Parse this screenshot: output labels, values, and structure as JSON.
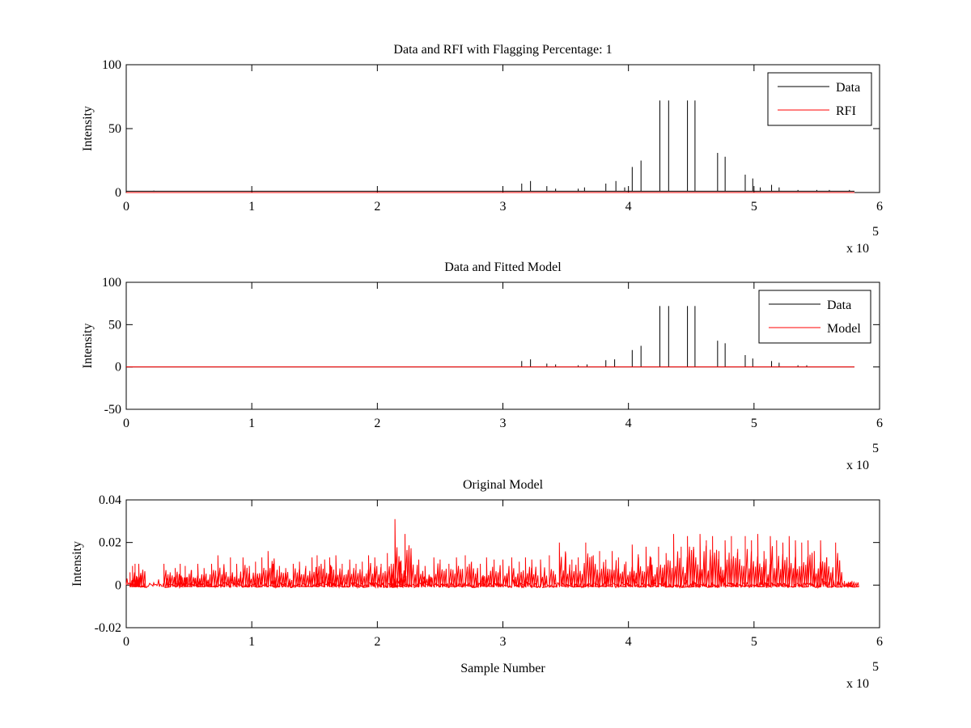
{
  "figure": {
    "background": "#ffffff"
  },
  "colors": {
    "data": "#000000",
    "rfi": "#ff0000",
    "model": "#ff0000",
    "axes": "#000000"
  },
  "chart_data": [
    {
      "type": "line",
      "title": "Data and RFI with Flagging Percentage: 1",
      "xlabel": "",
      "ylabel": "Intensity",
      "xlim": [
        0,
        6
      ],
      "ylim": [
        0,
        100
      ],
      "x_ticks": [
        "0",
        "1",
        "2",
        "3",
        "4",
        "5",
        "6"
      ],
      "y_ticks": [
        "0",
        "50",
        "100"
      ],
      "x_exponent": {
        "base": "x 10",
        "power": "5"
      },
      "legend": {
        "position": "top-right",
        "entries": [
          "Data",
          "RFI"
        ]
      },
      "series": [
        {
          "name": "Data",
          "color": "#000000",
          "baseline": 1,
          "end_x": 5.8,
          "spikes": [
            [
              0.22,
              1.5
            ],
            [
              3.15,
              7
            ],
            [
              3.22,
              9
            ],
            [
              3.35,
              5
            ],
            [
              3.42,
              3
            ],
            [
              3.6,
              3
            ],
            [
              3.65,
              4
            ],
            [
              3.82,
              7
            ],
            [
              3.9,
              9
            ],
            [
              3.97,
              4
            ],
            [
              4.03,
              20
            ],
            [
              4.1,
              25
            ],
            [
              4.25,
              72
            ],
            [
              4.32,
              72
            ],
            [
              4.47,
              72
            ],
            [
              4.53,
              72
            ],
            [
              4.71,
              31
            ],
            [
              4.77,
              28
            ],
            [
              4.93,
              14
            ],
            [
              4.99,
              11
            ],
            [
              5.05,
              4
            ],
            [
              5.14,
              6
            ],
            [
              5.2,
              4
            ],
            [
              5.35,
              2
            ],
            [
              5.5,
              2
            ],
            [
              5.6,
              2
            ],
            [
              5.76,
              2
            ]
          ]
        },
        {
          "name": "RFI",
          "color": "#ff0000",
          "baseline": 0,
          "end_x": 5.8,
          "spikes": []
        }
      ]
    },
    {
      "type": "line",
      "title": "Data and Fitted Model",
      "xlabel": "",
      "ylabel": "Intensity",
      "xlim": [
        0,
        6
      ],
      "ylim": [
        -50,
        100
      ],
      "x_ticks": [
        "0",
        "1",
        "2",
        "3",
        "4",
        "5",
        "6"
      ],
      "y_ticks": [
        "-50",
        "0",
        "50",
        "100"
      ],
      "x_exponent": {
        "base": "x 10",
        "power": "5"
      },
      "legend": {
        "position": "top-right",
        "entries": [
          "Data",
          "Model"
        ]
      },
      "series": [
        {
          "name": "Data",
          "color": "#000000",
          "baseline": 0,
          "end_x": 5.8,
          "spikes": [
            [
              3.15,
              7
            ],
            [
              3.22,
              9
            ],
            [
              3.35,
              4
            ],
            [
              3.42,
              3
            ],
            [
              3.6,
              2
            ],
            [
              3.67,
              3
            ],
            [
              3.82,
              8
            ],
            [
              3.89,
              9
            ],
            [
              4.03,
              20
            ],
            [
              4.1,
              25
            ],
            [
              4.25,
              72
            ],
            [
              4.32,
              72
            ],
            [
              4.47,
              72
            ],
            [
              4.53,
              72
            ],
            [
              4.71,
              31
            ],
            [
              4.77,
              28
            ],
            [
              4.93,
              14
            ],
            [
              4.99,
              10
            ],
            [
              5.14,
              7
            ],
            [
              5.2,
              5
            ],
            [
              5.35,
              2
            ],
            [
              5.42,
              2
            ]
          ]
        },
        {
          "name": "Model",
          "color": "#ff0000",
          "baseline": 0,
          "end_x": 5.8,
          "spikes": []
        }
      ]
    },
    {
      "type": "line",
      "title": "Original Model",
      "xlabel": "Sample Number",
      "ylabel": "Intensity",
      "xlim": [
        0,
        6
      ],
      "ylim": [
        -0.02,
        0.04
      ],
      "x_ticks": [
        "0",
        "1",
        "2",
        "3",
        "4",
        "5",
        "6"
      ],
      "y_ticks": [
        "-0.02",
        "0",
        "0.02",
        "0.04"
      ],
      "x_exponent": {
        "base": "x 10",
        "power": "5"
      },
      "legend": null,
      "series": [
        {
          "name": "",
          "color": "#ff0000",
          "baseline": 0,
          "end_x": 5.8,
          "noise": 0.0012,
          "spikes": [
            [
              0.03,
              0.006
            ],
            [
              0.05,
              0.009
            ],
            [
              0.07,
              0.01
            ],
            [
              0.1,
              0.01
            ],
            [
              0.3,
              0.01
            ],
            [
              0.35,
              0.006
            ],
            [
              0.39,
              0.008
            ],
            [
              0.43,
              0.01
            ],
            [
              0.47,
              0.009
            ],
            [
              0.52,
              0.007
            ],
            [
              0.57,
              0.01
            ],
            [
              0.62,
              0.008
            ],
            [
              0.68,
              0.01
            ],
            [
              0.73,
              0.014
            ],
            [
              0.78,
              0.008
            ],
            [
              0.83,
              0.013
            ],
            [
              0.88,
              0.01
            ],
            [
              0.93,
              0.013
            ],
            [
              0.98,
              0.009
            ],
            [
              1.03,
              0.011
            ],
            [
              1.08,
              0.013
            ],
            [
              1.13,
              0.016
            ],
            [
              1.17,
              0.01
            ],
            [
              1.22,
              0.009
            ],
            [
              1.27,
              0.008
            ],
            [
              1.33,
              0.01
            ],
            [
              1.38,
              0.011
            ],
            [
              1.43,
              0.009
            ],
            [
              1.48,
              0.013
            ],
            [
              1.52,
              0.014
            ],
            [
              1.58,
              0.012
            ],
            [
              1.62,
              0.013
            ],
            [
              1.67,
              0.014
            ],
            [
              1.72,
              0.01
            ],
            [
              1.78,
              0.012
            ],
            [
              1.83,
              0.01
            ],
            [
              1.88,
              0.011
            ],
            [
              1.93,
              0.014
            ],
            [
              1.98,
              0.013
            ],
            [
              2.03,
              0.01
            ],
            [
              2.08,
              0.015
            ],
            [
              2.11,
              0.01
            ],
            [
              2.14,
              0.031
            ],
            [
              2.18,
              0.011
            ],
            [
              2.22,
              0.024
            ],
            [
              2.27,
              0.014
            ],
            [
              2.33,
              0.012
            ],
            [
              2.38,
              0.009
            ],
            [
              2.45,
              0.013
            ],
            [
              2.5,
              0.012
            ],
            [
              2.57,
              0.01
            ],
            [
              2.63,
              0.013
            ],
            [
              2.7,
              0.014
            ],
            [
              2.75,
              0.011
            ],
            [
              2.82,
              0.01
            ],
            [
              2.87,
              0.013
            ],
            [
              2.93,
              0.012
            ],
            [
              3.0,
              0.012
            ],
            [
              3.07,
              0.013
            ],
            [
              3.13,
              0.011
            ],
            [
              3.18,
              0.013
            ],
            [
              3.23,
              0.012
            ],
            [
              3.3,
              0.012
            ],
            [
              3.37,
              0.014
            ],
            [
              3.45,
              0.02
            ],
            [
              3.5,
              0.015
            ],
            [
              3.55,
              0.012
            ],
            [
              3.6,
              0.013
            ],
            [
              3.66,
              0.02
            ],
            [
              3.72,
              0.014
            ],
            [
              3.77,
              0.016
            ],
            [
              3.82,
              0.012
            ],
            [
              3.87,
              0.016
            ],
            [
              3.92,
              0.013
            ],
            [
              3.98,
              0.011
            ],
            [
              4.03,
              0.019
            ],
            [
              4.08,
              0.013
            ],
            [
              4.14,
              0.018
            ],
            [
              4.18,
              0.013
            ],
            [
              4.24,
              0.018
            ],
            [
              4.3,
              0.015
            ],
            [
              4.36,
              0.024
            ],
            [
              4.42,
              0.018
            ],
            [
              4.47,
              0.023
            ],
            [
              4.52,
              0.017
            ],
            [
              4.57,
              0.024
            ],
            [
              4.62,
              0.021
            ],
            [
              4.67,
              0.023
            ],
            [
              4.72,
              0.016
            ],
            [
              4.77,
              0.021
            ],
            [
              4.82,
              0.023
            ],
            [
              4.87,
              0.017
            ],
            [
              4.93,
              0.023
            ],
            [
              4.98,
              0.021
            ],
            [
              5.03,
              0.024
            ],
            [
              5.08,
              0.016
            ],
            [
              5.13,
              0.023
            ],
            [
              5.18,
              0.021
            ],
            [
              5.23,
              0.02
            ],
            [
              5.28,
              0.023
            ],
            [
              5.33,
              0.021
            ],
            [
              5.38,
              0.02
            ],
            [
              5.43,
              0.021
            ],
            [
              5.48,
              0.016
            ],
            [
              5.53,
              0.021
            ],
            [
              5.58,
              0.013
            ],
            [
              5.65,
              0.02
            ],
            [
              5.72,
              0.002
            ],
            [
              5.78,
              0.002
            ]
          ]
        }
      ]
    }
  ]
}
